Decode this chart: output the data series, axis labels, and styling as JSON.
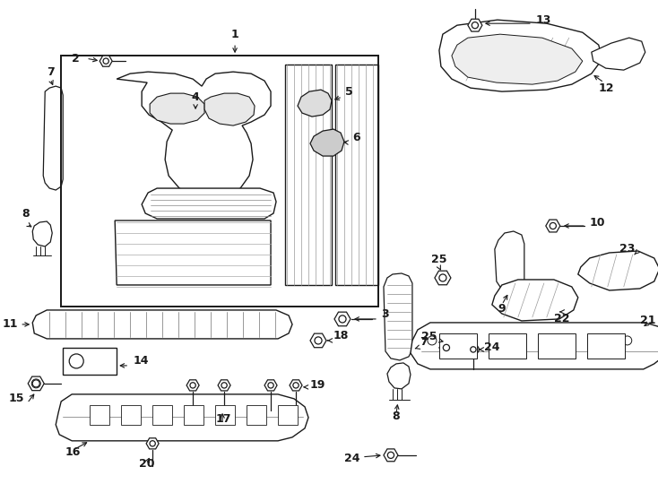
{
  "bg": "#ffffff",
  "lc": "#1a1a1a",
  "fw": 7.34,
  "fh": 5.4,
  "dpi": 100,
  "fontsize_label": 9,
  "lw": 1.0
}
